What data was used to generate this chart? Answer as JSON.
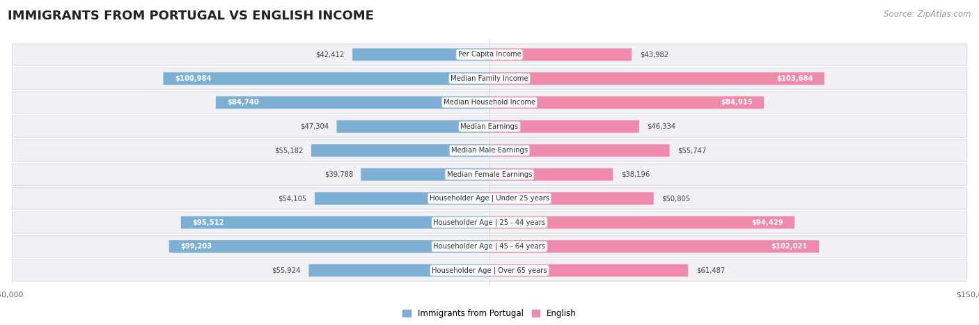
{
  "title": "IMMIGRANTS FROM PORTUGAL VS ENGLISH INCOME",
  "source": "Source: ZipAtlas.com",
  "categories": [
    "Per Capita Income",
    "Median Family Income",
    "Median Household Income",
    "Median Earnings",
    "Median Male Earnings",
    "Median Female Earnings",
    "Householder Age | Under 25 years",
    "Householder Age | 25 - 44 years",
    "Householder Age | 45 - 64 years",
    "Householder Age | Over 65 years"
  ],
  "portugal_values": [
    42412,
    100984,
    84740,
    47304,
    55182,
    39788,
    54105,
    95512,
    99203,
    55924
  ],
  "english_values": [
    43982,
    103684,
    84915,
    46334,
    55747,
    38196,
    50805,
    94429,
    102021,
    61487
  ],
  "portugal_labels": [
    "$42,412",
    "$100,984",
    "$84,740",
    "$47,304",
    "$55,182",
    "$39,788",
    "$54,105",
    "$95,512",
    "$99,203",
    "$55,924"
  ],
  "english_labels": [
    "$43,982",
    "$103,684",
    "$84,915",
    "$46,334",
    "$55,747",
    "$38,196",
    "$50,805",
    "$94,429",
    "$102,021",
    "$61,487"
  ],
  "max_value": 150000,
  "portugal_color": "#7bafd4",
  "english_color": "#f08aaa",
  "background_color": "#ffffff",
  "row_bg": "#f0f0f5",
  "row_border": "#dcdce8",
  "title_fontsize": 13,
  "source_fontsize": 8.5,
  "bar_height": 0.52,
  "threshold_inside": 65000,
  "legend_portugal": "Immigrants from Portugal",
  "legend_english": "English"
}
